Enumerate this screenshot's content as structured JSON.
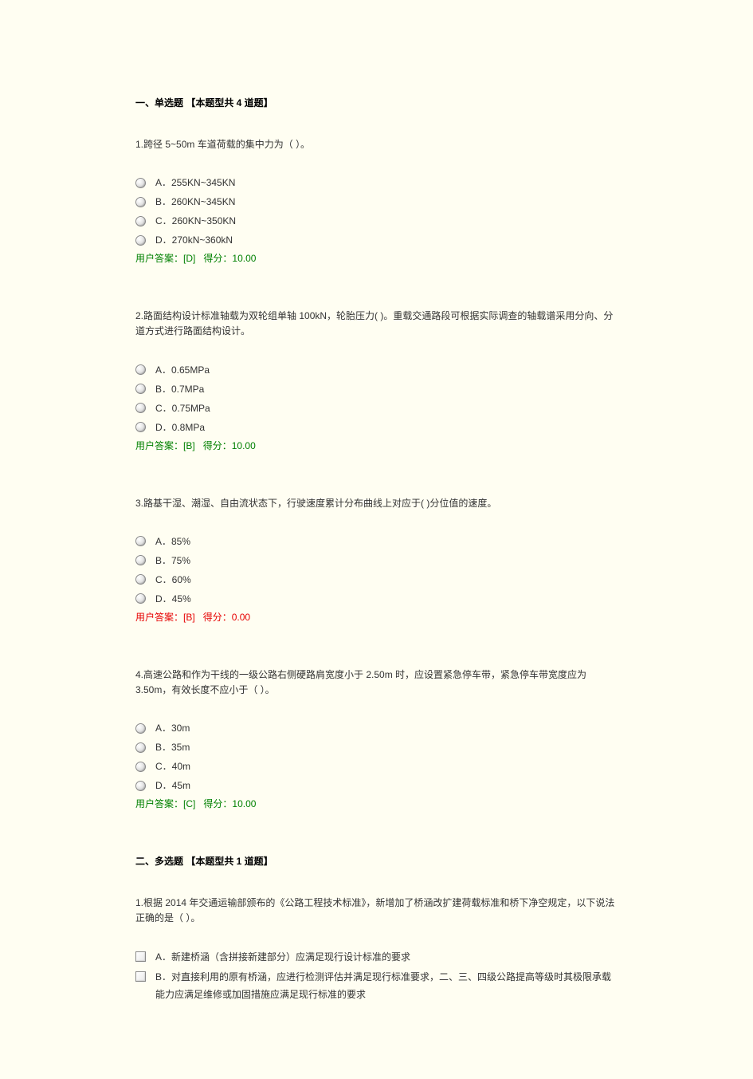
{
  "section1": {
    "title": "一、单选题 【本题型共 4 道题】",
    "questions": [
      {
        "prompt": "1.跨径 5~50m 车道荷载的集中力为（ ）。",
        "options": [
          "A．255KN~345KN",
          "B．260KN~345KN",
          "C．260KN~350KN",
          "D．270kN~360kN"
        ],
        "answer_prefix": "用户答案：",
        "answer_choice": "[D]",
        "score_label": "得分：",
        "score_value": "10.00",
        "correct": true
      },
      {
        "prompt": "2.路面结构设计标准轴载为双轮组单轴 100kN，轮胎压力( )。重载交通路段可根据实际调查的轴载谱采用分向、分道方式进行路面结构设计。",
        "options": [
          "A．0.65MPa",
          "B．0.7MPa",
          "C．0.75MPa",
          "D．0.8MPa"
        ],
        "answer_prefix": "用户答案：",
        "answer_choice": "[B]",
        "score_label": "得分：",
        "score_value": "10.00",
        "correct": true
      },
      {
        "prompt": "3.路基干湿、潮湿、自由流状态下，行驶速度累计分布曲线上对应于( )分位值的速度。",
        "options": [
          "A．85%",
          "B．75%",
          "C．60%",
          "D．45%"
        ],
        "answer_prefix": "用户答案：",
        "answer_choice": "[B]",
        "score_label": "得分：",
        "score_value": "0.00",
        "correct": false
      },
      {
        "prompt": "4.高速公路和作为干线的一级公路右侧硬路肩宽度小于 2.50m 时，应设置紧急停车带，紧急停车带宽度应为 3.50m，有效长度不应小于（ ）。",
        "options": [
          "A．30m",
          "B．35m",
          "C．40m",
          "D．45m"
        ],
        "answer_prefix": "用户答案：",
        "answer_choice": "[C]",
        "score_label": "得分：",
        "score_value": "10.00",
        "correct": true
      }
    ]
  },
  "section2": {
    "title": "二、多选题 【本题型共 1 道题】",
    "question": {
      "prompt": "1.根据 2014 年交通运输部颁布的《公路工程技术标准》，新增加了桥涵改扩建荷载标准和桥下净空规定，以下说法正确的是（  ）。",
      "options": [
        "A．新建桥涵（含拼接新建部分）应满足现行设计标准的要求",
        "B．对直接利用的原有桥涵，应进行检测评估并满足现行标准要求，二、三、四级公路提高等级时其极限承载能力应满足维修或加固措施应满足现行标准的要求"
      ]
    }
  },
  "colors": {
    "background": "#fffef2",
    "text": "#333333",
    "answer_correct": "#008000",
    "answer_wrong": "#e60000"
  }
}
